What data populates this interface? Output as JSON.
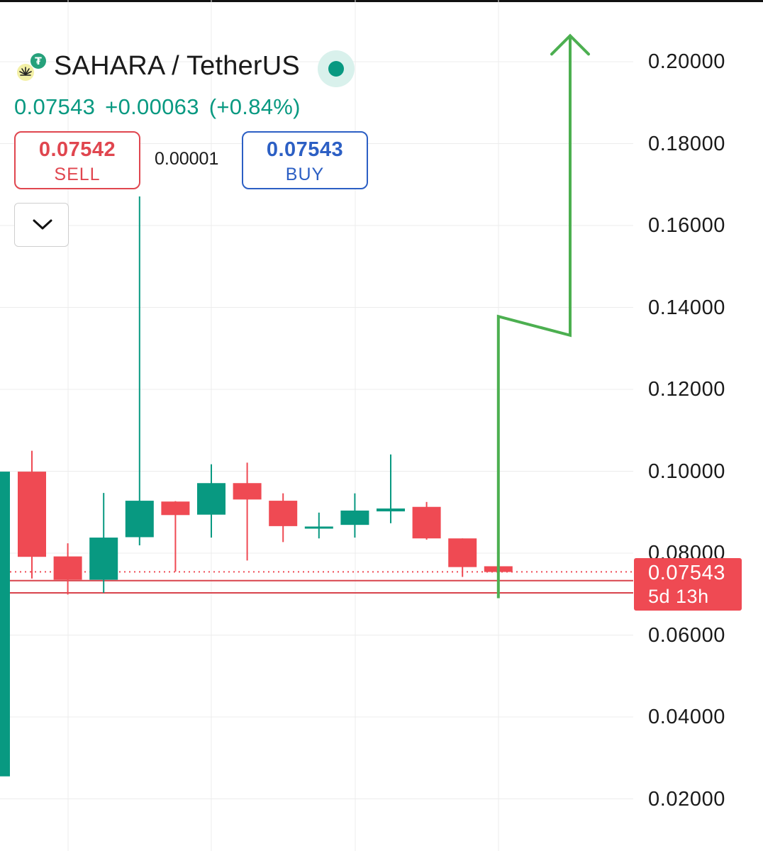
{
  "header": {
    "pair": "SAHARA / TetherUS",
    "last_price": "0.07543",
    "change": "+0.00063",
    "change_pct": "(+0.84%)"
  },
  "trade": {
    "sell_price": "0.07542",
    "sell_label": "SELL",
    "spread": "0.00001",
    "buy_price": "0.07543",
    "buy_label": "BUY"
  },
  "colors": {
    "up": "#089981",
    "down": "#ef4a53",
    "arrow": "#4caf50",
    "buy": "#2c5fc4",
    "grid": "#ececec"
  },
  "icons": {
    "logo": "sahara-logo-icon",
    "status": "market-open-dot-icon",
    "dropdown": "chevron-down-icon"
  },
  "chart_data": {
    "type": "candlestick",
    "title": "",
    "ylim": [
      0.01,
      0.21
    ],
    "y_ticks": [
      "0.20000",
      "0.18000",
      "0.16000",
      "0.14000",
      "0.12000",
      "0.10000",
      "0.08000",
      "0.06000",
      "0.04000",
      "0.02000"
    ],
    "y_tick_values": [
      0.2,
      0.18,
      0.16,
      0.14,
      0.12,
      0.1,
      0.08,
      0.06,
      0.04,
      0.02
    ],
    "candles": [
      {
        "open": 0.0999,
        "high": 0.105,
        "low": 0.0738,
        "close": 0.0791
      },
      {
        "open": 0.0792,
        "high": 0.0824,
        "low": 0.0699,
        "close": 0.0735
      },
      {
        "open": 0.0735,
        "high": 0.0947,
        "low": 0.0703,
        "close": 0.0838
      },
      {
        "open": 0.0839,
        "high": 0.1671,
        "low": 0.0819,
        "close": 0.0928
      },
      {
        "open": 0.0926,
        "high": 0.0927,
        "low": 0.0755,
        "close": 0.0893
      },
      {
        "open": 0.0894,
        "high": 0.1017,
        "low": 0.0838,
        "close": 0.0971
      },
      {
        "open": 0.0971,
        "high": 0.1021,
        "low": 0.0782,
        "close": 0.0931
      },
      {
        "open": 0.0928,
        "high": 0.0946,
        "low": 0.0827,
        "close": 0.0866
      },
      {
        "open": 0.0863,
        "high": 0.0899,
        "low": 0.0836,
        "close": 0.0865
      },
      {
        "open": 0.0869,
        "high": 0.0946,
        "low": 0.0838,
        "close": 0.0904
      },
      {
        "open": 0.0902,
        "high": 0.1041,
        "low": 0.0873,
        "close": 0.0909
      },
      {
        "open": 0.0913,
        "high": 0.0925,
        "low": 0.0833,
        "close": 0.0836
      },
      {
        "open": 0.0836,
        "high": 0.0836,
        "low": 0.0742,
        "close": 0.0766
      },
      {
        "open": 0.0768,
        "high": 0.0768,
        "low": 0.0756,
        "close": 0.0754
      }
    ],
    "partial_left_candle": {
      "open": 0.0999,
      "close": 0.0255
    },
    "last_price": 0.07543,
    "last_price_label": "0.07543",
    "countdown": "5d 13h",
    "horizontal_lines": [
      0.0733,
      0.0703
    ],
    "annotation_arrow": {
      "path": [
        [
          13,
          0.069
        ],
        [
          13,
          0.1378
        ],
        [
          15,
          0.1332
        ],
        [
          15,
          0.206
        ]
      ],
      "direction": "up"
    }
  }
}
